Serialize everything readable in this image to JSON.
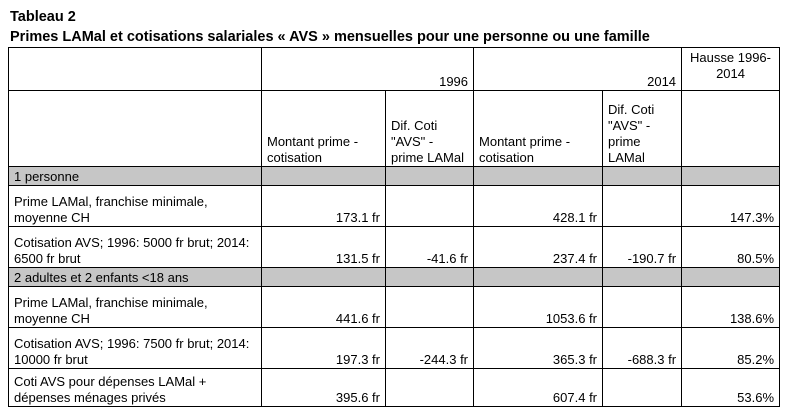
{
  "title": "Tableau 2",
  "subtitle": "Primes LAMal et cotisations salariales « AVS » mensuelles pour une personne ou une famille",
  "header": {
    "year1": "1996",
    "year2": "2014",
    "hausse": "Hausse 1996-2014",
    "col_montant_1": "Montant prime - cotisation",
    "col_dif_1": "Dif. Coti \"AVS\" - prime LAMal",
    "col_montant_2": "Montant prime - cotisation",
    "col_dif_2": "Dif. Coti \"AVS\" - prime LAMal"
  },
  "sections": [
    {
      "label": "1 personne",
      "rows": [
        {
          "label": "Prime LAMal, franchise minimale, moyenne CH",
          "m1996": "173.1 fr",
          "d1996": "",
          "m2014": "428.1 fr",
          "d2014": "",
          "hausse": "147.3%"
        },
        {
          "label": "Cotisation AVS; 1996: 5000 fr brut; 2014: 6500 fr brut",
          "m1996": "131.5 fr",
          "d1996": "-41.6 fr",
          "m2014": "237.4 fr",
          "d2014": "-190.7 fr",
          "hausse": "80.5%"
        }
      ]
    },
    {
      "label": "2 adultes et 2 enfants <18 ans",
      "rows": [
        {
          "label": "Prime LAMal, franchise minimale, moyenne CH",
          "m1996": "441.6 fr",
          "d1996": "",
          "m2014": "1053.6 fr",
          "d2014": "",
          "hausse": "138.6%"
        },
        {
          "label": "Cotisation AVS; 1996: 7500 fr brut; 2014: 10000 fr brut",
          "m1996": "197.3 fr",
          "d1996": "-244.3 fr",
          "m2014": "365.3 fr",
          "d2014": "-688.3 fr",
          "hausse": "85.2%"
        },
        {
          "label": "Coti AVS pour dépenses LAMal + dépenses ménages privés",
          "m1996": "395.6 fr",
          "d1996": "",
          "m2014": "607.4 fr",
          "d2014": "",
          "hausse": "53.6%"
        }
      ]
    }
  ]
}
